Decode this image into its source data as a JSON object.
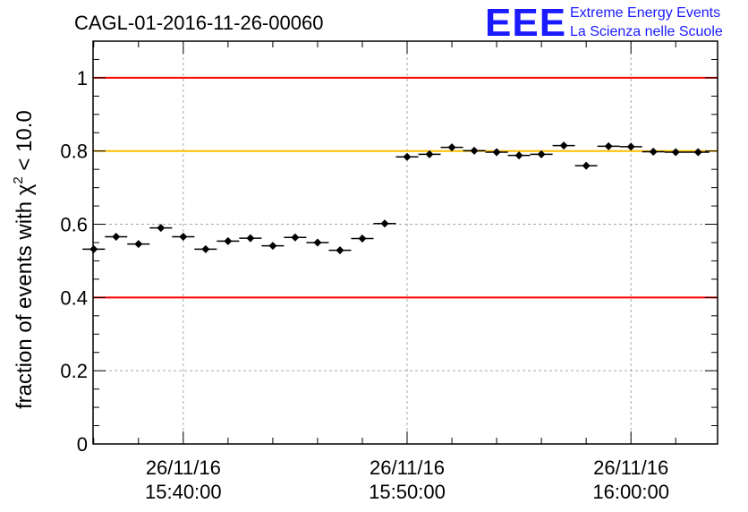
{
  "chart_data": {
    "type": "scatter",
    "title": "CAGL-01-2016-11-26-00060",
    "logo": {
      "letters": "EEE",
      "line1": "Extreme Energy Events",
      "line2": "La Scienza nelle Scuole",
      "color": "#1a1aff"
    },
    "ylabel": "fraction of events with χ",
    "ylabel_sup": "2",
    "ylabel_suffix": " < 10.0",
    "ylim": [
      0,
      1.1
    ],
    "yticks": [
      0,
      0.2,
      0.4,
      0.6,
      0.8,
      1
    ],
    "ytick_labels": [
      "0",
      "0.2",
      "0.4",
      "0.6",
      "0.8",
      "1"
    ],
    "xlim_min": [
      35.97,
      63.87
    ],
    "xticks_min": [
      40,
      50,
      60
    ],
    "xtick_labels": [
      {
        "date": "26/11/16",
        "time": "15:40:00"
      },
      {
        "date": "26/11/16",
        "time": "15:50:00"
      },
      {
        "date": "26/11/16",
        "time": "16:00:00"
      }
    ],
    "grid": true,
    "reference_lines": [
      {
        "y": 1.0,
        "color": "#ff0000"
      },
      {
        "y": 0.8,
        "color": "#ffbf00"
      },
      {
        "y": 0.4,
        "color": "#ff0000"
      }
    ],
    "bin_width_min": 1.0,
    "series": [
      {
        "x_min": [
          36.0,
          37.0,
          38.0,
          39.0,
          40.0,
          41.0,
          42.0,
          43.0,
          44.0,
          45.0,
          46.0,
          47.0,
          48.0,
          49.0,
          50.0,
          51.0,
          52.0,
          53.0,
          54.0,
          55.0,
          56.0,
          57.0,
          58.0,
          59.0,
          60.0,
          61.0,
          62.0,
          63.0
        ],
        "y": [
          0.532,
          0.566,
          0.546,
          0.59,
          0.566,
          0.532,
          0.554,
          0.562,
          0.541,
          0.564,
          0.55,
          0.529,
          0.561,
          0.602,
          0.784,
          0.791,
          0.81,
          0.801,
          0.797,
          0.788,
          0.791,
          0.815,
          0.76,
          0.813,
          0.812,
          0.798,
          0.797,
          0.797
        ],
        "yerr": 0.009,
        "color": "#000000"
      }
    ]
  }
}
